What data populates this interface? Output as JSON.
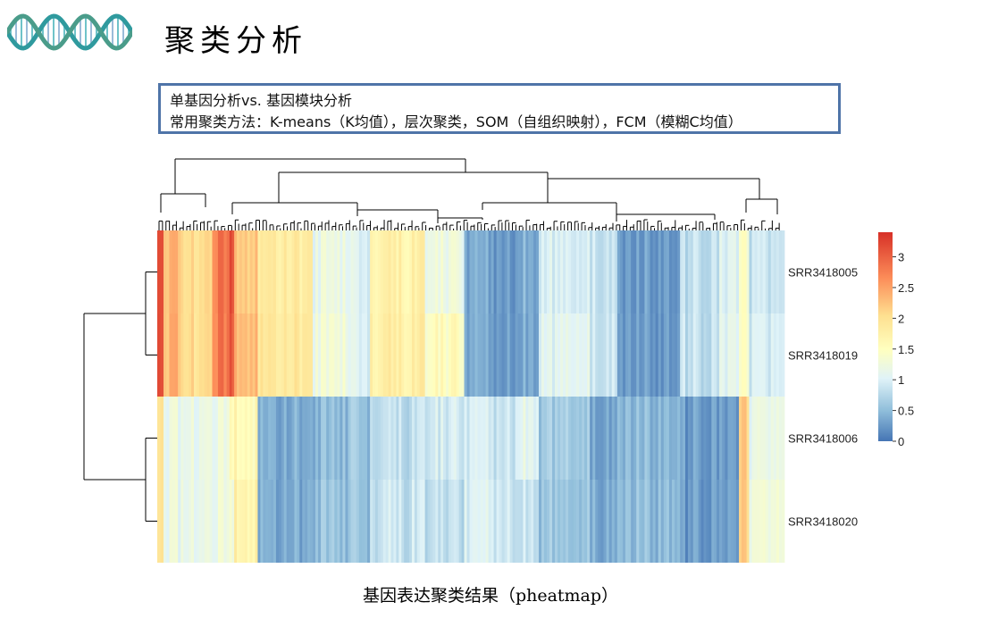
{
  "slide": {
    "title": "聚类分析",
    "logo_icon": "dna-helix-icon",
    "info_line1": "单基因分析vs. 基因模块分析",
    "info_line2": "常用聚类方法：K-means（K均值），层次聚类，SOM（自组织映射），FCM（模糊C均值）",
    "caption": "基因表达聚类结果（pheatmap）"
  },
  "chart_data": {
    "type": "heatmap",
    "rows": [
      "SRR3418005",
      "SRR3418019",
      "SRR3418006",
      "SRR3418020"
    ],
    "row_clusters": [
      [
        "SRR3418005",
        "SRR3418019"
      ],
      [
        "SRR3418006",
        "SRR3418020"
      ]
    ],
    "column_dendrogram": true,
    "row_dendrogram": true,
    "colorbar": {
      "ticks": [
        3,
        2.5,
        2,
        1.5,
        1,
        0.5,
        0
      ],
      "range": [
        0,
        3.4
      ],
      "colors": [
        "#4575b4",
        "#91bfdb",
        "#e0f3f8",
        "#ffffbf",
        "#fee090",
        "#fc8d59",
        "#d73027"
      ]
    },
    "column_segments": [
      {
        "frac": 0.008,
        "values": [
          3.3,
          3.3,
          2.1,
          2.1
        ]
      },
      {
        "frac": 0.022,
        "values": [
          2.3,
          2.3,
          1.15,
          1.15
        ]
      },
      {
        "frac": 0.04,
        "values": [
          2.0,
          2.0,
          1.15,
          1.15
        ]
      },
      {
        "frac": 0.022,
        "values": [
          2.8,
          2.8,
          1.2,
          1.2
        ]
      },
      {
        "frac": 0.006,
        "values": [
          3.1,
          3.0,
          1.5,
          1.2
        ]
      },
      {
        "frac": 0.03,
        "values": [
          2.2,
          2.3,
          1.6,
          1.7
        ]
      },
      {
        "frac": 0.07,
        "values": [
          1.85,
          1.9,
          0.4,
          0.4
        ]
      },
      {
        "frac": 0.045,
        "values": [
          1.15,
          1.25,
          0.45,
          0.5
        ]
      },
      {
        "frac": 0.028,
        "values": [
          1.0,
          1.0,
          0.55,
          0.55
        ]
      },
      {
        "frac": 0.07,
        "values": [
          1.7,
          1.75,
          0.8,
          0.85
        ]
      },
      {
        "frac": 0.05,
        "values": [
          1.2,
          1.5,
          0.9,
          0.8
        ]
      },
      {
        "frac": 0.065,
        "values": [
          0.3,
          0.3,
          0.9,
          0.95
        ]
      },
      {
        "frac": 0.03,
        "values": [
          0.4,
          0.4,
          1.1,
          0.9
        ]
      },
      {
        "frac": 0.065,
        "values": [
          0.95,
          1.05,
          0.6,
          0.55
        ]
      },
      {
        "frac": 0.035,
        "values": [
          0.8,
          0.85,
          0.3,
          0.35
        ]
      },
      {
        "frac": 0.08,
        "values": [
          0.25,
          0.25,
          0.45,
          0.5
        ]
      },
      {
        "frac": 0.05,
        "values": [
          0.8,
          0.8,
          0.25,
          0.25
        ]
      },
      {
        "frac": 0.025,
        "values": [
          0.95,
          1.0,
          0.2,
          0.2
        ]
      },
      {
        "frac": 0.013,
        "values": [
          1.4,
          1.4,
          2.1,
          2.1
        ]
      },
      {
        "frac": 0.045,
        "values": [
          0.8,
          0.9,
          1.1,
          1.2
        ]
      }
    ]
  }
}
